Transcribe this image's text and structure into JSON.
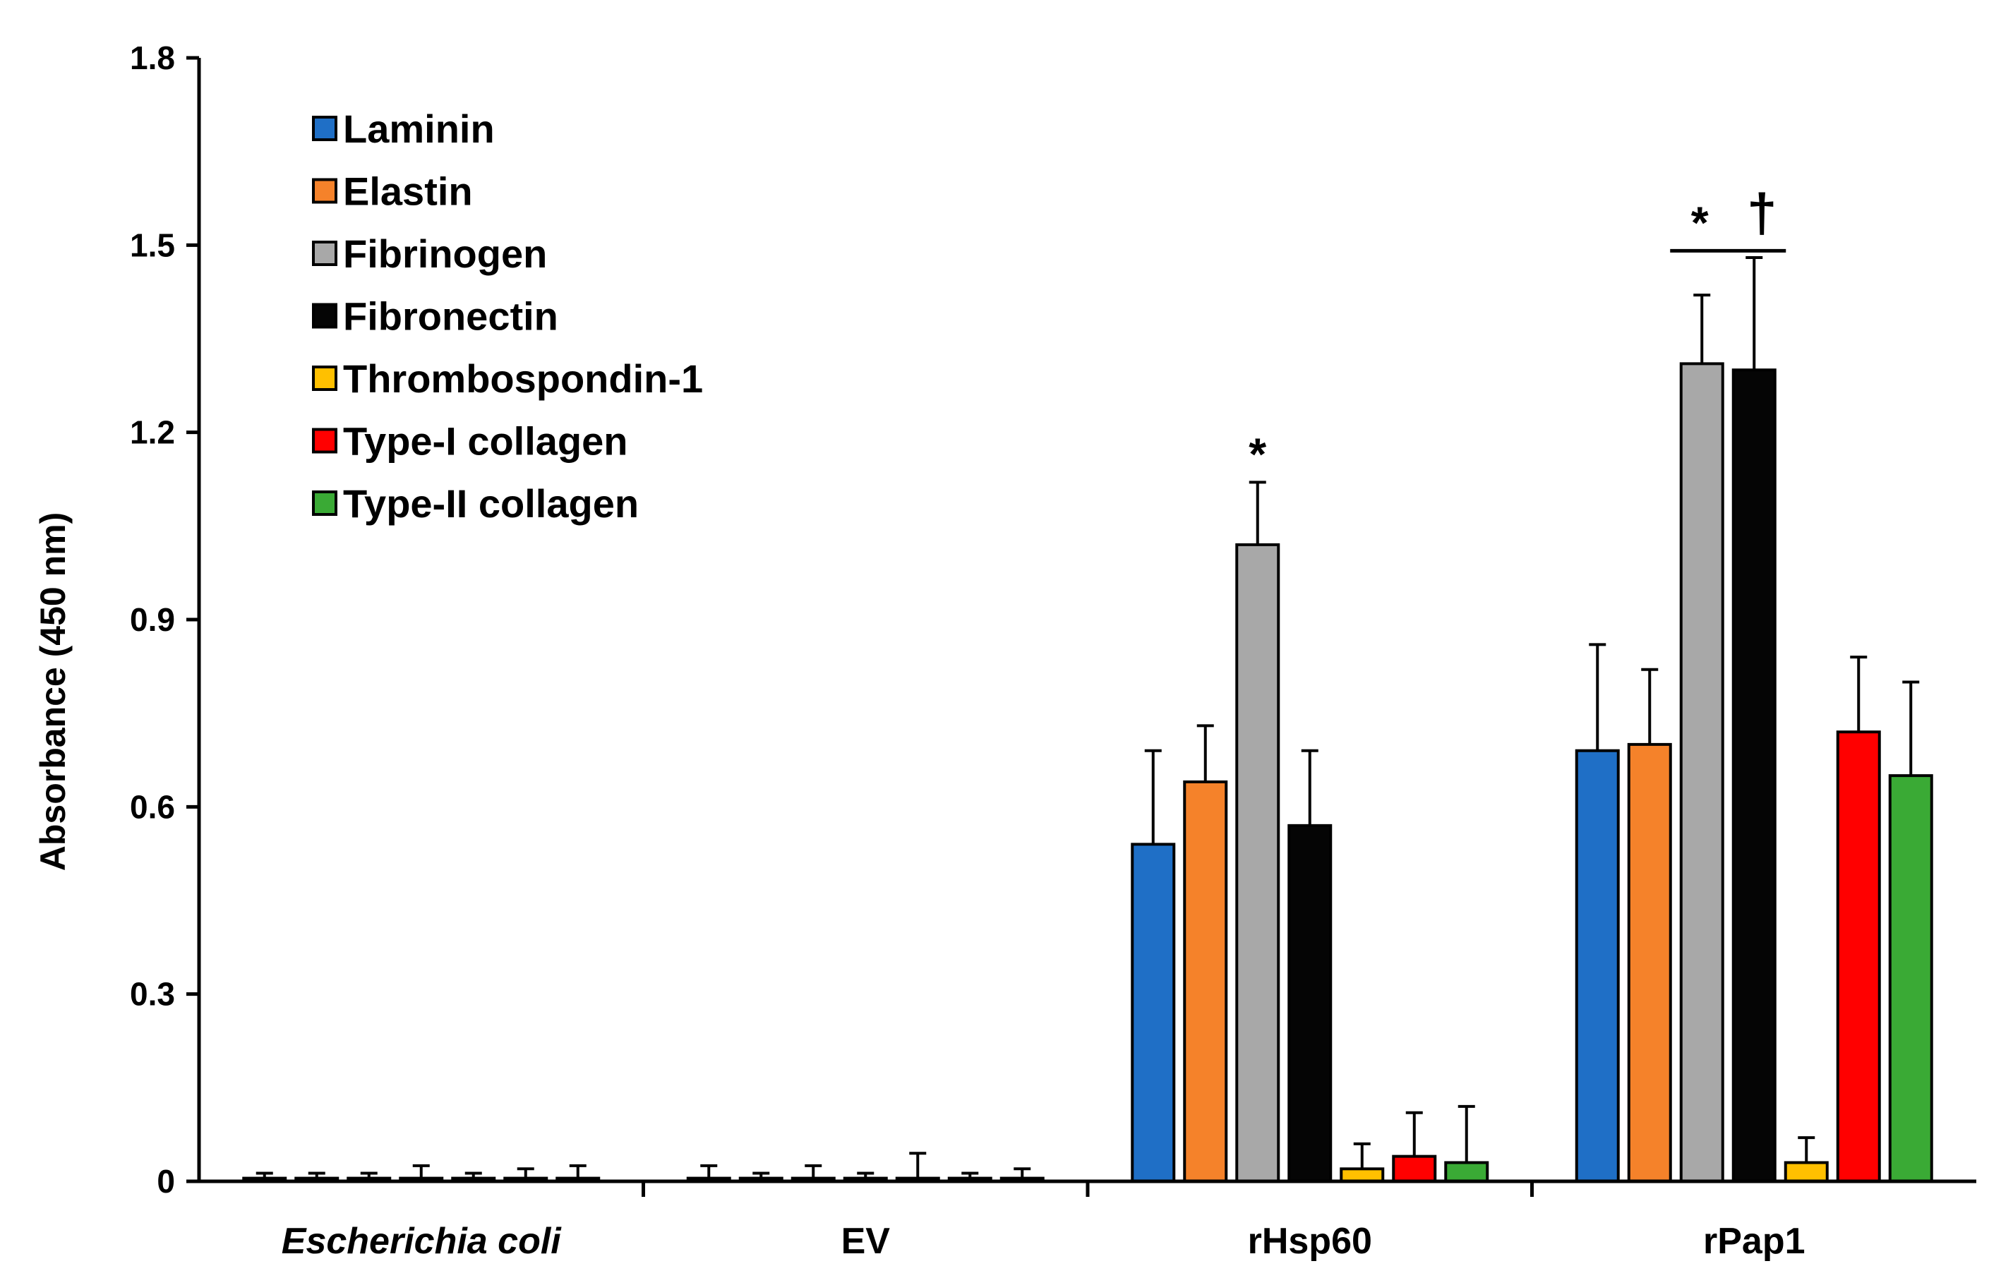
{
  "chart_data": {
    "type": "bar",
    "title": "",
    "xlabel": "",
    "ylabel": "Absorbance (450 nm)",
    "ylim": [
      0,
      1.8
    ],
    "yticks": [
      0,
      0.3,
      0.6,
      0.9,
      1.2,
      1.5,
      1.8
    ],
    "ytick_labels": [
      "0",
      "0.3",
      "0.6",
      "0.9",
      "1.2",
      "1.5",
      "1.8"
    ],
    "grid": false,
    "legend_position": "top-left",
    "categories": [
      "Escherichia coli",
      "EV",
      "rHsp60",
      "rPap1"
    ],
    "italic_categories": [
      "Escherichia coli"
    ],
    "series": [
      {
        "name": "Laminin",
        "color": "#1f6fc6",
        "values": [
          0.005,
          0.005,
          0.54,
          0.69
        ],
        "errors": [
          0.008,
          0.02,
          0.15,
          0.17
        ]
      },
      {
        "name": "Elastin",
        "color": "#f5822a",
        "values": [
          0.005,
          0.005,
          0.64,
          0.7
        ],
        "errors": [
          0.008,
          0.008,
          0.09,
          0.12
        ]
      },
      {
        "name": "Fibrinogen",
        "color": "#a8a8a8",
        "values": [
          0.005,
          0.005,
          1.02,
          1.31
        ],
        "errors": [
          0.008,
          0.02,
          0.1,
          0.11
        ]
      },
      {
        "name": "Fibronectin",
        "color": "#050505",
        "values": [
          0.005,
          0.005,
          0.57,
          1.3
        ],
        "errors": [
          0.02,
          0.008,
          0.12,
          0.18
        ]
      },
      {
        "name": "Thrombospondin-1",
        "color": "#ffc000",
        "values": [
          0.005,
          0.005,
          0.02,
          0.03
        ],
        "errors": [
          0.008,
          0.04,
          0.04,
          0.04
        ]
      },
      {
        "name": "Type-I collagen",
        "color": "#ff0000",
        "values": [
          0.005,
          0.005,
          0.04,
          0.72
        ],
        "errors": [
          0.015,
          0.008,
          0.07,
          0.12
        ]
      },
      {
        "name": "Type-II collagen",
        "color": "#3aaa35",
        "values": [
          0.005,
          0.005,
          0.03,
          0.65
        ],
        "errors": [
          0.02,
          0.015,
          0.09,
          0.15
        ]
      }
    ],
    "annotations": [
      {
        "text": "*",
        "category": "rHsp60",
        "series": "Fibrinogen"
      },
      {
        "text": "*",
        "category": "rPap1",
        "series": [
          "Fibrinogen",
          "Fibronectin"
        ],
        "bracket": true
      },
      {
        "text": "†",
        "category": "rPap1",
        "series": [
          "Fibrinogen",
          "Fibronectin"
        ],
        "bracket": true
      }
    ]
  }
}
